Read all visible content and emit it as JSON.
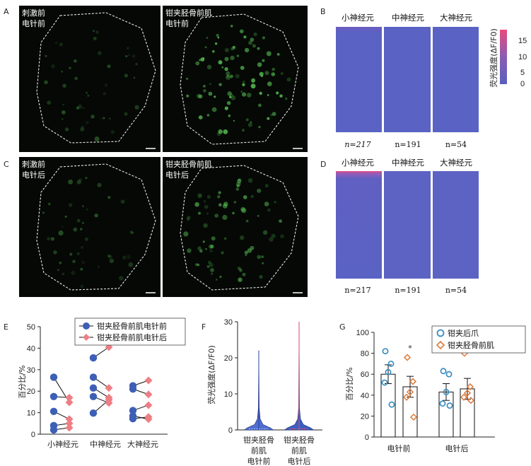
{
  "panel_letters": [
    "A",
    "B",
    "C",
    "D",
    "E",
    "F",
    "G"
  ],
  "images": {
    "tl": [
      "刺激前",
      "电针前"
    ],
    "tr": [
      "钳夹胫骨前肌",
      "电针前"
    ],
    "bl": [
      "刺激前",
      "电针后"
    ],
    "br": [
      "钳夹胫骨前肌",
      "电针后"
    ]
  },
  "heatmaps": {
    "headers": [
      "小神经元",
      "中神经元",
      "大神经元"
    ],
    "counts": [
      "n=217",
      "n=191",
      "n=54"
    ],
    "colorbar": {
      "label": "荧光强度(ΔF/F0)",
      "ticks": [
        "15",
        "10",
        "5",
        "0"
      ],
      "max": 17,
      "low_color": "#5a5fbf",
      "high_color": "#e8497c"
    }
  },
  "colors": {
    "blue": "#3d5fb5",
    "pink": "#ee7e84",
    "orange": "#de7a3a",
    "ring": "#3c8ec2",
    "sig": "#e8497c"
  },
  "chart_data": [
    {
      "panel": "E",
      "type": "scatter",
      "ylabel": "百分比/%",
      "ylim": [
        0,
        50
      ],
      "yticks": [
        "0",
        "10",
        "20",
        "30",
        "40",
        "50"
      ],
      "categories": [
        "小神经元",
        "中神经元",
        "大神经元"
      ],
      "legend": [
        "钳夹胫骨前肌电针前",
        "钳夹胫骨前肌电针后"
      ],
      "pairs": [
        [
          [
            26.5,
            14.8
          ],
          [
            17.5,
            17.0
          ],
          [
            10.6,
            7.0
          ],
          [
            4.0,
            5.0
          ],
          [
            2.0,
            3.0
          ]
        ],
        [
          [
            35.5,
            40.5
          ],
          [
            26.5,
            21.5
          ],
          [
            21.5,
            17.0
          ],
          [
            17.5,
            14.5
          ],
          [
            9.8,
            16.0
          ]
        ],
        [
          [
            22.5,
            25.0
          ],
          [
            21.0,
            18.5
          ],
          [
            11.0,
            13.5
          ],
          [
            8.5,
            7.0
          ],
          [
            7.2,
            8.0
          ]
        ]
      ]
    },
    {
      "panel": "F",
      "type": "violin",
      "ylabel": "荧光强度(ΔF/F0)",
      "ylim": [
        0,
        30
      ],
      "yticks": [
        "0",
        "10",
        "20",
        "30"
      ],
      "categories": [
        [
          "钳夹胫骨",
          "前肌",
          "电针前"
        ],
        [
          "钳夹胫骨",
          "前肌",
          "电针后"
        ]
      ],
      "max": [
        22,
        30
      ],
      "median": [
        0.3,
        0.3
      ]
    },
    {
      "panel": "G",
      "type": "bar",
      "ylabel": "百分比/%",
      "ylim": [
        0,
        100
      ],
      "yticks": [
        "0",
        "20",
        "40",
        "60",
        "80",
        "100"
      ],
      "categories": [
        "电针前",
        "电针后"
      ],
      "legend": [
        "钳夹后爪",
        "钳夹胫骨前肌"
      ],
      "means": [
        [
          60,
          48
        ],
        [
          43,
          46
        ]
      ],
      "errors": [
        [
          9,
          10
        ],
        [
          8,
          10
        ]
      ],
      "points": [
        [
          [
            82,
            70,
            62,
            52,
            31
          ],
          [
            76,
            53,
            43,
            38,
            19
          ]
        ],
        [
          [
            63,
            60,
            43,
            32,
            30
          ],
          [
            80,
            48,
            42,
            38,
            35
          ]
        ]
      ],
      "significance": "*"
    }
  ]
}
